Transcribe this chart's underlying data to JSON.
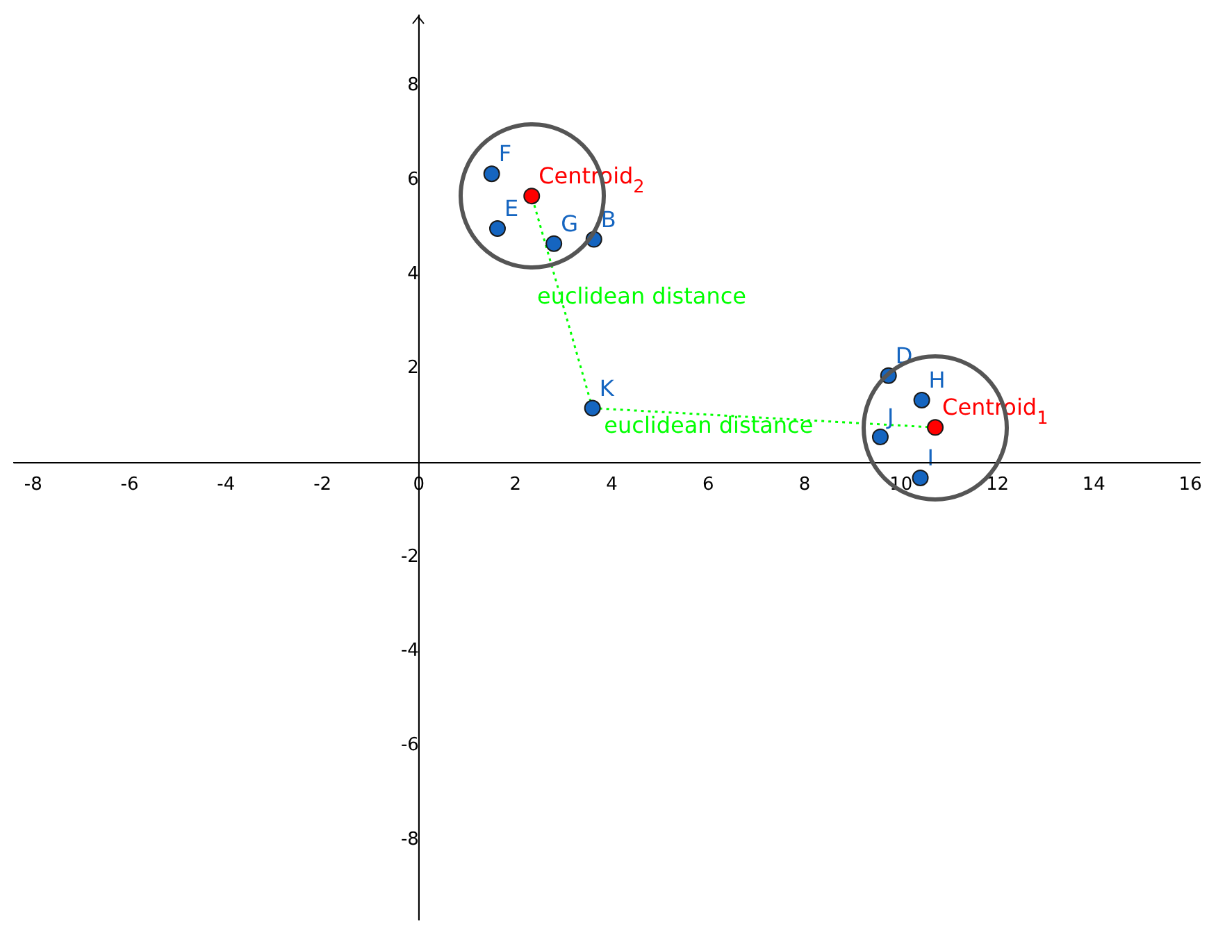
{
  "chart_data": {
    "type": "scatter",
    "xlim": [
      -8.4,
      16.2
    ],
    "ylim": [
      -9.7,
      9.5
    ],
    "xticks": [
      -8,
      -6,
      -4,
      -2,
      0,
      2,
      4,
      6,
      8,
      10,
      12,
      14,
      16
    ],
    "yticks": [
      -8,
      -6,
      -4,
      -2,
      2,
      4,
      6,
      8
    ],
    "grid": false,
    "legend": false,
    "marker": "circle",
    "series": [
      {
        "type": "line",
        "color": "#00ff00",
        "line_style": "dotted",
        "x": [
          3.6,
          2.34
        ],
        "values": [
          1.16,
          5.66
        ]
      },
      {
        "type": "line",
        "color": "#00ff00",
        "line_style": "dotted",
        "x": [
          3.6,
          10.71
        ],
        "values": [
          1.16,
          0.75
        ]
      },
      {
        "color": "#1565c0",
        "x": [
          1.51,
          1.63,
          2.8,
          3.63,
          3.6,
          9.74,
          10.43,
          9.57,
          10.4
        ],
        "values": [
          6.13,
          4.97,
          4.65,
          4.74,
          1.16,
          1.85,
          1.33,
          0.55,
          -0.32
        ]
      },
      {
        "color": "#ff0000",
        "x": [
          2.34,
          10.71
        ],
        "values": [
          5.66,
          0.75
        ]
      }
    ],
    "annotations": [
      {
        "text": "F",
        "x": 1.51,
        "y": 6.13
      },
      {
        "text": "E",
        "x": 1.63,
        "y": 4.97
      },
      {
        "text": "G",
        "x": 2.8,
        "y": 4.65
      },
      {
        "text": "B",
        "x": 3.63,
        "y": 4.74
      },
      {
        "text": "K",
        "x": 3.6,
        "y": 1.16
      },
      {
        "text": "D",
        "x": 9.74,
        "y": 1.85
      },
      {
        "text": "H",
        "x": 10.43,
        "y": 1.33
      },
      {
        "text": "J",
        "x": 9.57,
        "y": 0.55
      },
      {
        "text": "I",
        "x": 10.4,
        "y": -0.32
      },
      {
        "text": "Centroid$_{2}$",
        "x": 2.34,
        "y": 5.66
      },
      {
        "text": "Centroid$_{1}$",
        "x": 10.71,
        "y": 0.75
      },
      "euclidean distance",
      "euclidean distance"
    ]
  }
}
